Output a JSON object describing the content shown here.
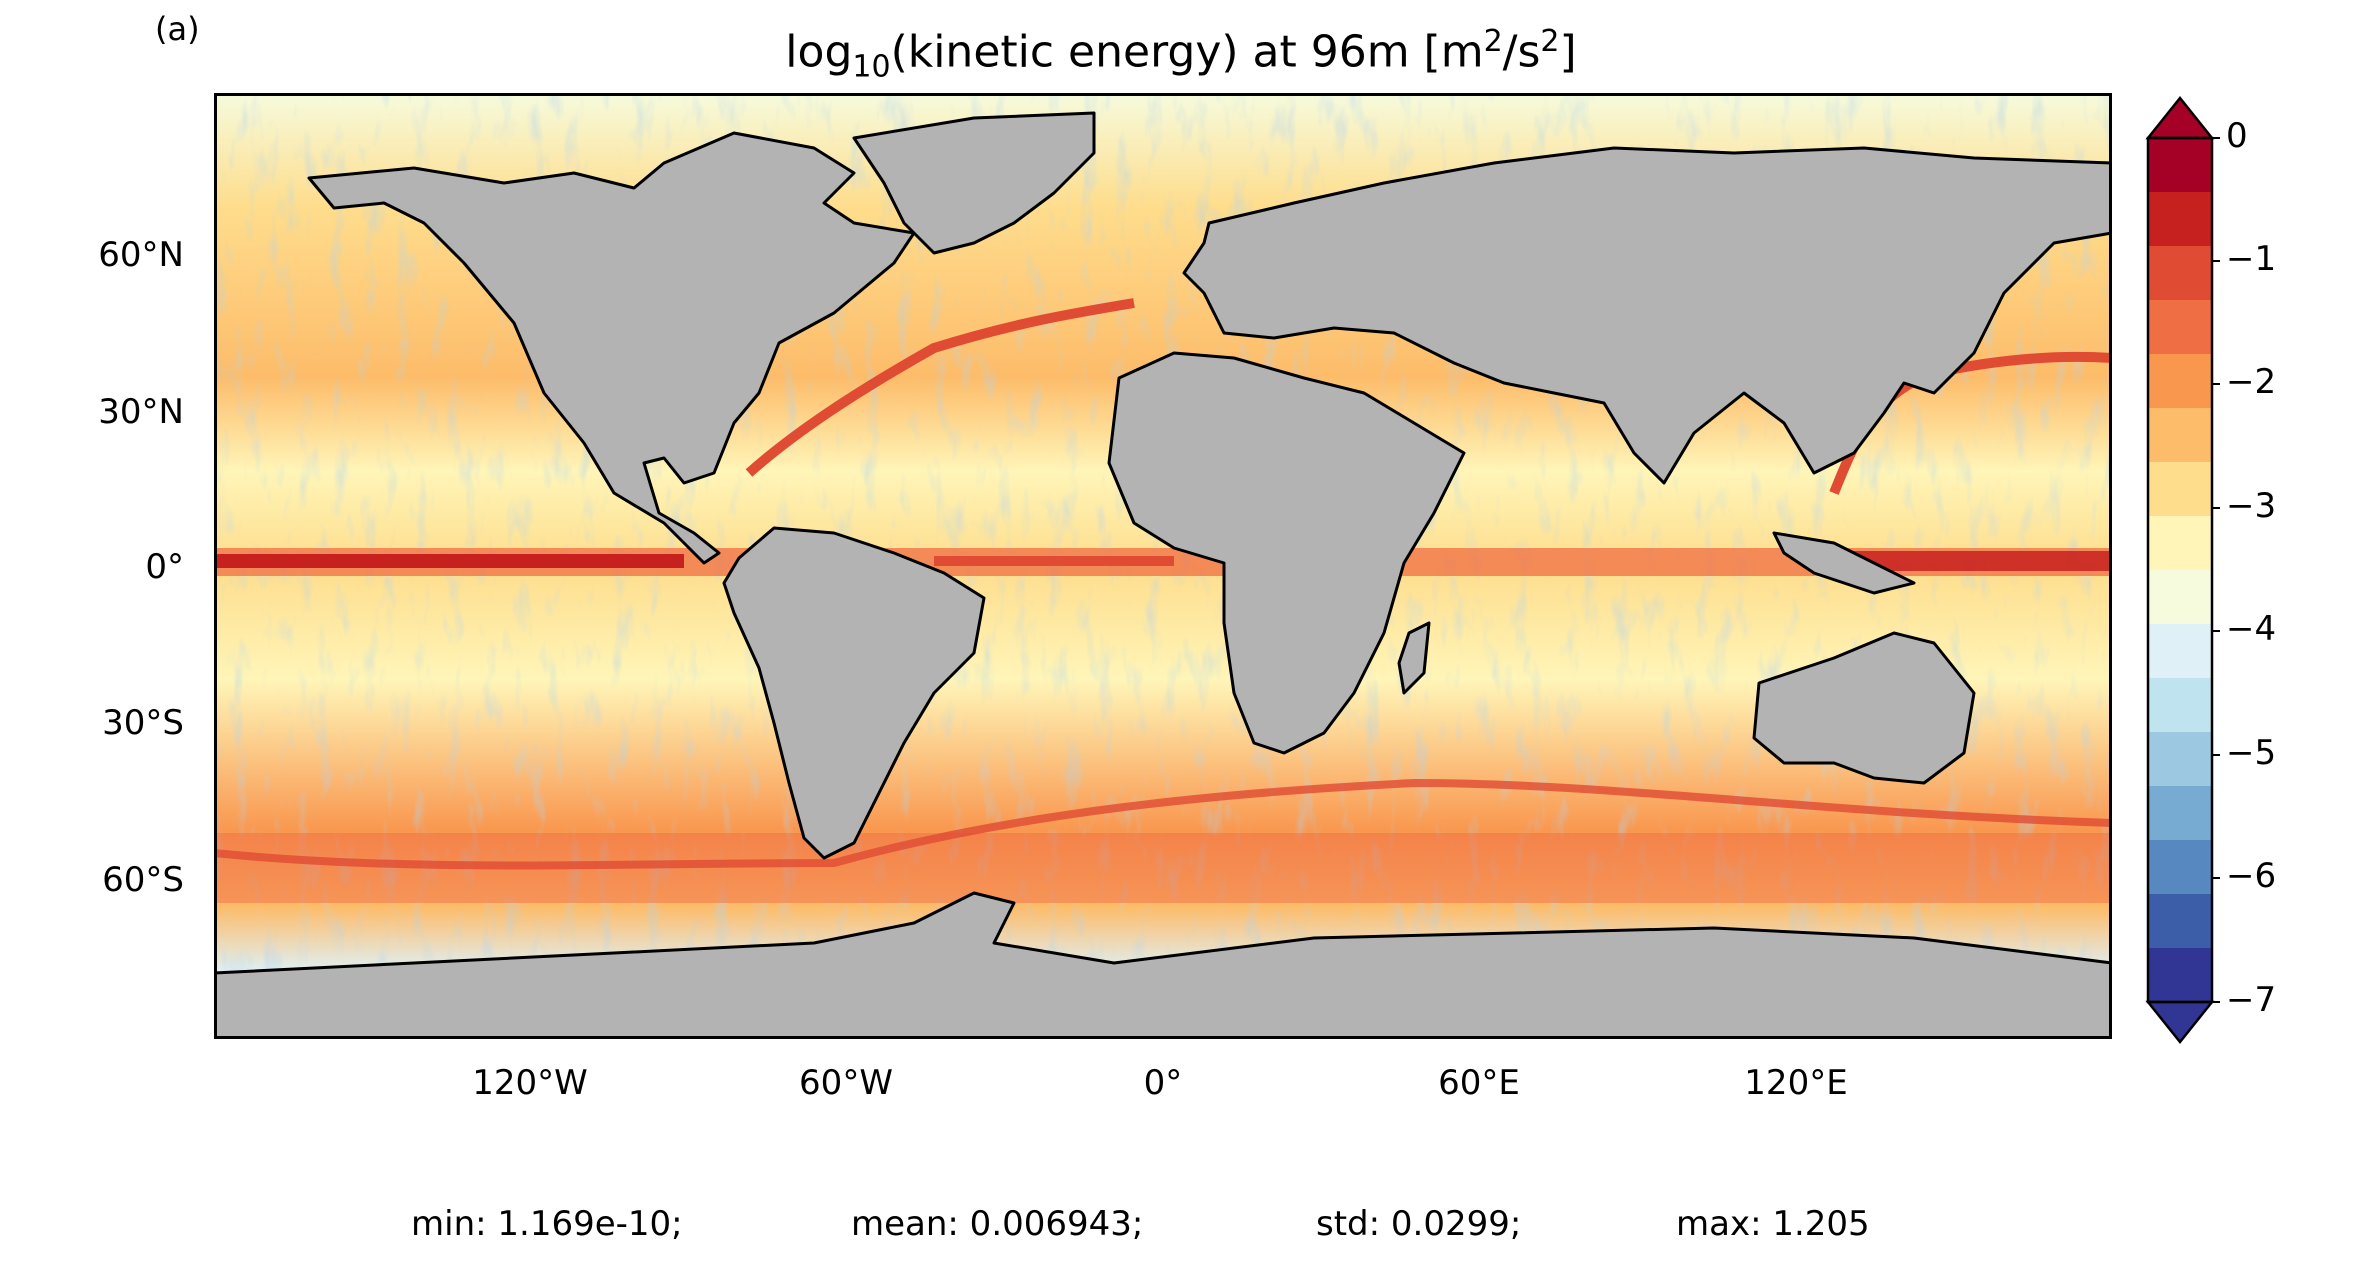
{
  "panel_label": "(a)",
  "title": {
    "prefix": "log",
    "sub": "10",
    "middle": "(kinetic energy) at 96m [m",
    "sup1": "2",
    "slash": "/s",
    "sup2": "2",
    "suffix": "]"
  },
  "lat_labels": [
    "60°N",
    "30°N",
    "0°",
    "30°S",
    "60°S"
  ],
  "lon_labels": [
    "120°W",
    "60°W",
    "0°",
    "60°E",
    "120°E"
  ],
  "colorbar": {
    "tick_labels": [
      "0",
      "−1",
      "−2",
      "−3",
      "−4",
      "−5",
      "−6",
      "−7"
    ],
    "colors": [
      "#a50026",
      "#c7211f",
      "#e04b33",
      "#f06e43",
      "#f9974f",
      "#fdbc6a",
      "#fedd8d",
      "#fff5b8",
      "#f6fbdd",
      "#dff1f6",
      "#bfe3ef",
      "#9cc9e1",
      "#78abd1",
      "#5788bf",
      "#3c5ea9",
      "#313695"
    ],
    "land_color": "#b3b3b3"
  },
  "stats": {
    "min": "min: 1.169e-10;",
    "mean": "mean: 0.006943;",
    "std": "std: 0.0299;",
    "max": "max: 1.205"
  }
}
